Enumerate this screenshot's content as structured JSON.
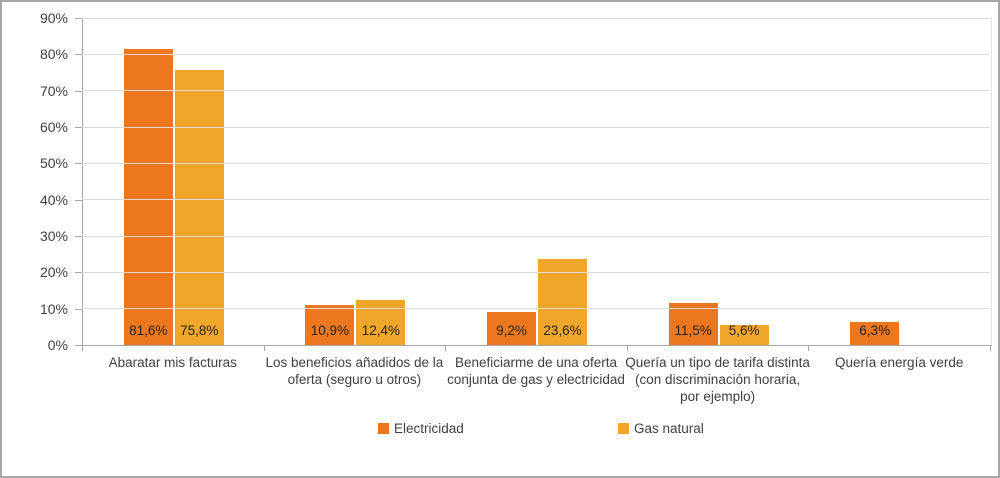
{
  "chart_data": {
    "type": "bar",
    "title": "",
    "xlabel": "",
    "ylabel": "",
    "categories": [
      "Abaratar mis facturas",
      "Los beneficios añadidos de la oferta (seguro u otros)",
      "Beneficiarme de una oferta conjunta de gas y electricidad",
      "Quería un tipo de tarifa distinta (con discriminación horaria, por ejemplo)",
      "Quería energía verde"
    ],
    "series": [
      {
        "name": "Electricidad",
        "color": "#ED771E",
        "values": [
          81.6,
          10.9,
          9.2,
          11.5,
          6.3
        ],
        "value_labels": [
          "81,6%",
          "10,9%",
          "9,2%",
          "11,5%",
          "6,3%"
        ]
      },
      {
        "name": "Gas natural",
        "color": "#F0A62B",
        "values": [
          75.8,
          12.4,
          23.6,
          5.6,
          null
        ],
        "value_labels": [
          "75,8%",
          "12,4%",
          "23,6%",
          "5,6%",
          ""
        ]
      }
    ],
    "ylim": [
      0,
      90
    ],
    "yticks": [
      "0%",
      "10%",
      "20%",
      "30%",
      "40%",
      "50%",
      "60%",
      "70%",
      "80%",
      "90%"
    ],
    "grid": true,
    "legend_position": "bottom"
  },
  "colors": {
    "electricidad": "#ED771E",
    "gas_natural": "#F0A62B",
    "gridline": "#DCDCDA",
    "axis": "#A6A6A6",
    "value_label_text": "#262626",
    "axis_label_text": "#3F3F3F",
    "frame_border": "#A6A6A6",
    "background": "#FFFFFF"
  }
}
